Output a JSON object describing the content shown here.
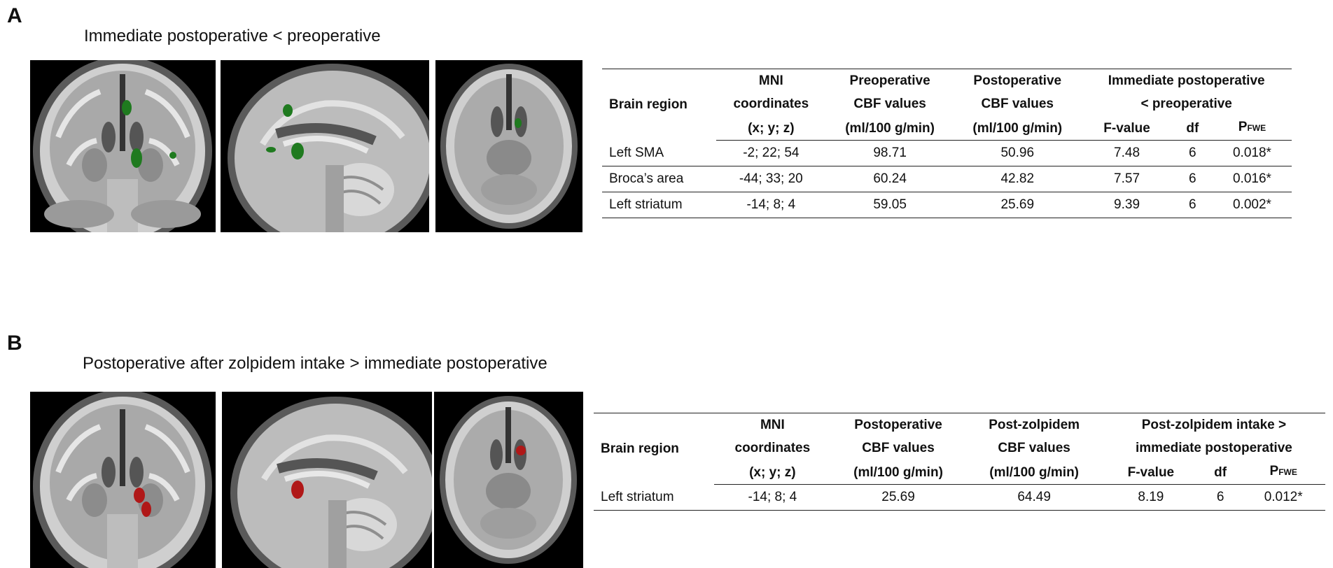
{
  "panel_a": {
    "letter": "A",
    "title": "Immediate postoperative < preoperative",
    "table": {
      "col_region": "Brain region",
      "col_mni": [
        "MNI",
        "coordinates",
        "(x; y; z)"
      ],
      "col_pre": [
        "Preoperative",
        "CBF values",
        "(ml/100 g/min)"
      ],
      "col_post": [
        "Postoperative",
        "CBF values",
        "(ml/100 g/min)"
      ],
      "group_header": [
        "Immediate postoperative",
        "< preoperative"
      ],
      "col_f": "F-value",
      "col_df": "df",
      "col_p_main": "P",
      "col_p_sub": "FWE",
      "rows": [
        {
          "region": "Left SMA",
          "mni": "-2; 22; 54",
          "pre": "98.71",
          "post": "50.96",
          "f": "7.48",
          "df": "6",
          "p": "0.018*"
        },
        {
          "region": "Broca’s area",
          "mni": "-44; 33; 20",
          "pre": "60.24",
          "post": "42.82",
          "f": "7.57",
          "df": "6",
          "p": "0.016*"
        },
        {
          "region": "Left striatum",
          "mni": "-14; 8; 4",
          "pre": "59.05",
          "post": "25.69",
          "f": "9.39",
          "df": "6",
          "p": "0.002*"
        }
      ]
    },
    "blob_color": "#1f7a1f"
  },
  "panel_b": {
    "letter": "B",
    "title": "Postoperative after zolpidem intake > immediate postoperative",
    "table": {
      "col_region": "Brain region",
      "col_mni": [
        "MNI",
        "coordinates",
        "(x; y; z)"
      ],
      "col_post": [
        "Postoperative",
        "CBF values",
        "(ml/100 g/min)"
      ],
      "col_zolp": [
        "Post-zolpidem",
        "CBF values",
        "(ml/100 g/min)"
      ],
      "group_header": [
        "Post-zolpidem intake >",
        "immediate postoperative"
      ],
      "col_f": "F-value",
      "col_df": "df",
      "col_p_main": "P",
      "col_p_sub": "FWE",
      "rows": [
        {
          "region": "Left striatum",
          "mni": "-14; 8; 4",
          "post": "25.69",
          "zolp": "64.49",
          "f": "8.19",
          "df": "6",
          "p": "0.012*"
        }
      ]
    },
    "blob_color": "#b01818"
  }
}
